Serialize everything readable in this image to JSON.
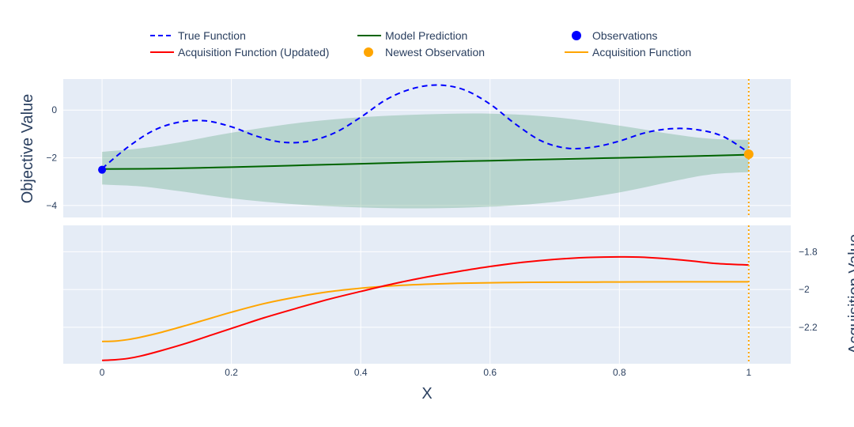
{
  "chart_data": {
    "type": "line",
    "x_label": "X",
    "top_y_label": "Objective Value",
    "bottom_y_label": "Acquisition Value",
    "x_range": [
      -0.06,
      1.065
    ],
    "x_ticks": [
      "0",
      "0.2",
      "0.4",
      "0.6",
      "0.8",
      "1"
    ],
    "x_tick_values": [
      0,
      0.2,
      0.4,
      0.6,
      0.8,
      1
    ],
    "top_y_range": [
      -4.5,
      1.3
    ],
    "top_y_ticks": [
      "0",
      "−2",
      "−4"
    ],
    "top_y_tick_values": [
      0,
      -2,
      -4
    ],
    "bottom_y_range": [
      -2.393,
      -1.66
    ],
    "bottom_y_ticks": [
      "−1.8",
      "−2",
      "−2.2"
    ],
    "bottom_y_tick_values": [
      -1.8,
      -2.0,
      -2.2
    ],
    "vline_x": 1.0,
    "legend": [
      {
        "label": "True Function",
        "kind": "dash",
        "color": "#0000ff"
      },
      {
        "label": "Model Prediction",
        "kind": "line",
        "color": "#006400"
      },
      {
        "label": "Observations",
        "kind": "marker",
        "color": "#0000ff"
      },
      {
        "label": "Acquisition Function (Updated)",
        "kind": "line",
        "color": "#ff0000"
      },
      {
        "label": "Newest Observation",
        "kind": "marker",
        "color": "#ffa500"
      },
      {
        "label": "Acquisition Function",
        "kind": "line",
        "color": "#ffa500"
      }
    ],
    "true_function": {
      "x": [
        0,
        0.04,
        0.08,
        0.12,
        0.16,
        0.2,
        0.24,
        0.28,
        0.32,
        0.36,
        0.4,
        0.44,
        0.48,
        0.52,
        0.56,
        0.6,
        0.64,
        0.68,
        0.72,
        0.76,
        0.8,
        0.84,
        0.88,
        0.92,
        0.96,
        1.0
      ],
      "y": [
        -2.45,
        -1.55,
        -0.85,
        -0.5,
        -0.45,
        -0.7,
        -1.1,
        -1.35,
        -1.3,
        -0.95,
        -0.3,
        0.45,
        0.9,
        1.05,
        0.85,
        0.25,
        -0.6,
        -1.3,
        -1.6,
        -1.55,
        -1.3,
        -0.95,
        -0.78,
        -0.82,
        -1.1,
        -1.78
      ]
    },
    "model_prediction": {
      "x": [
        0,
        0.1,
        0.2,
        0.3,
        0.4,
        0.5,
        0.6,
        0.7,
        0.8,
        0.9,
        1.0
      ],
      "y": [
        -2.47,
        -2.45,
        -2.39,
        -2.32,
        -2.25,
        -2.18,
        -2.12,
        -2.06,
        -2.0,
        -1.94,
        -1.87
      ]
    },
    "confidence_band": {
      "x": [
        0,
        0.06,
        0.12,
        0.2,
        0.3,
        0.4,
        0.5,
        0.6,
        0.7,
        0.8,
        0.88,
        0.94,
        1.0
      ],
      "upper": [
        -1.75,
        -1.6,
        -1.35,
        -0.95,
        -0.55,
        -0.3,
        -0.18,
        -0.15,
        -0.3,
        -0.65,
        -1.0,
        -1.2,
        -1.25
      ],
      "lower": [
        -3.12,
        -3.2,
        -3.4,
        -3.7,
        -3.95,
        -4.08,
        -4.12,
        -4.05,
        -3.85,
        -3.45,
        -3.0,
        -2.7,
        -2.6
      ]
    },
    "observations": [
      {
        "x": 0,
        "y": -2.5
      }
    ],
    "newest_observation": [
      {
        "x": 1.0,
        "y": -1.85
      }
    ],
    "acquisition_updated": {
      "x": [
        0,
        0.02,
        0.04,
        0.06,
        0.09,
        0.13,
        0.17,
        0.21,
        0.25,
        0.3,
        0.35,
        0.4,
        0.45,
        0.5,
        0.55,
        0.6,
        0.65,
        0.7,
        0.75,
        0.8,
        0.83,
        0.87,
        0.91,
        0.95,
        1.0
      ],
      "y": [
        -2.375,
        -2.372,
        -2.365,
        -2.352,
        -2.325,
        -2.285,
        -2.24,
        -2.195,
        -2.15,
        -2.1,
        -2.052,
        -2.01,
        -1.97,
        -1.935,
        -1.905,
        -1.878,
        -1.856,
        -1.84,
        -1.83,
        -1.827,
        -1.828,
        -1.836,
        -1.848,
        -1.862,
        -1.87
      ]
    },
    "acquisition_function": {
      "x": [
        0,
        0.02,
        0.04,
        0.06,
        0.09,
        0.13,
        0.17,
        0.2,
        0.25,
        0.3,
        0.35,
        0.4,
        0.45,
        0.5,
        0.55,
        0.6,
        0.65,
        0.7,
        0.8,
        0.9,
        1.0
      ],
      "y": [
        -2.275,
        -2.273,
        -2.265,
        -2.252,
        -2.228,
        -2.19,
        -2.15,
        -2.12,
        -2.075,
        -2.04,
        -2.012,
        -1.993,
        -1.98,
        -1.972,
        -1.967,
        -1.964,
        -1.962,
        -1.961,
        -1.96,
        -1.959,
        -1.959
      ]
    }
  }
}
